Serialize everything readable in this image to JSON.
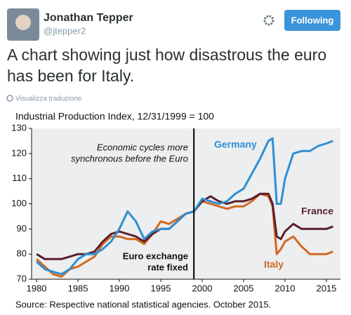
{
  "tweet": {
    "name": "Jonathan Tepper",
    "handle": "@jtepper2",
    "button": "Following",
    "text_lines": [
      "A chart showing just how disastrous the euro",
      "has been for Italy."
    ],
    "translate": "Visualizza traduzione"
  },
  "chart_data": {
    "type": "line",
    "title": "Industrial Production Index, 12/31/1999 = 100",
    "source": "Source: Respective national statistical agencies. October 2015.",
    "x": [
      1980,
      1981,
      1982,
      1983,
      1984,
      1985,
      1986,
      1987,
      1988,
      1989,
      1990,
      1991,
      1992,
      1993,
      1994,
      1995,
      1996,
      1997,
      1998,
      1999,
      2000,
      2001,
      2002,
      2003,
      2004,
      2005,
      2006,
      2007,
      2008,
      2008.5,
      2009,
      2009.5,
      2010,
      2011,
      2012,
      2013,
      2014,
      2015,
      2015.8
    ],
    "series": [
      {
        "name": "Germany",
        "color": "#2f8fd1",
        "values": [
          77,
          74,
          73,
          72,
          74,
          78,
          80,
          80,
          82,
          85,
          90,
          97,
          93,
          86,
          89,
          90,
          90,
          93,
          96,
          97,
          102,
          101,
          100,
          101,
          104,
          106,
          112,
          118,
          125,
          126,
          100,
          100,
          110,
          120,
          121,
          121,
          123,
          124,
          125
        ]
      },
      {
        "name": "France",
        "color": "#5b1f2e",
        "values": [
          80,
          78,
          78,
          78,
          79,
          80,
          80,
          81,
          85,
          88,
          89,
          88,
          87,
          85,
          88,
          90,
          90,
          93,
          96,
          97,
          101,
          103,
          101,
          100,
          101,
          101,
          102,
          104,
          104,
          100,
          87,
          86,
          89,
          92,
          90,
          90,
          90,
          90,
          91
        ]
      },
      {
        "name": "Italy",
        "color": "#d2691e",
        "values": [
          78,
          75,
          72,
          71,
          74,
          75,
          77,
          79,
          84,
          87,
          87,
          86,
          86,
          84,
          88,
          93,
          92,
          94,
          96,
          97,
          101,
          100,
          99,
          98,
          99,
          99,
          101,
          104,
          103,
          99,
          80,
          82,
          85,
          87,
          83,
          80,
          80,
          80,
          81
        ]
      }
    ],
    "annotations": [
      {
        "lines": [
          "Economic cycles more",
          "synchronous before the Euro"
        ]
      },
      {
        "lines": [
          "Euro exchange",
          "rate fixed"
        ]
      }
    ],
    "euro_line_x": 1999,
    "xlim": [
      1979.4,
      2016.7
    ],
    "ylim": [
      70,
      130
    ],
    "xticks": [
      1980,
      1985,
      1990,
      1995,
      2000,
      2005,
      2010,
      2015
    ],
    "yticks": [
      70,
      80,
      90,
      100,
      110,
      120,
      130
    ]
  }
}
